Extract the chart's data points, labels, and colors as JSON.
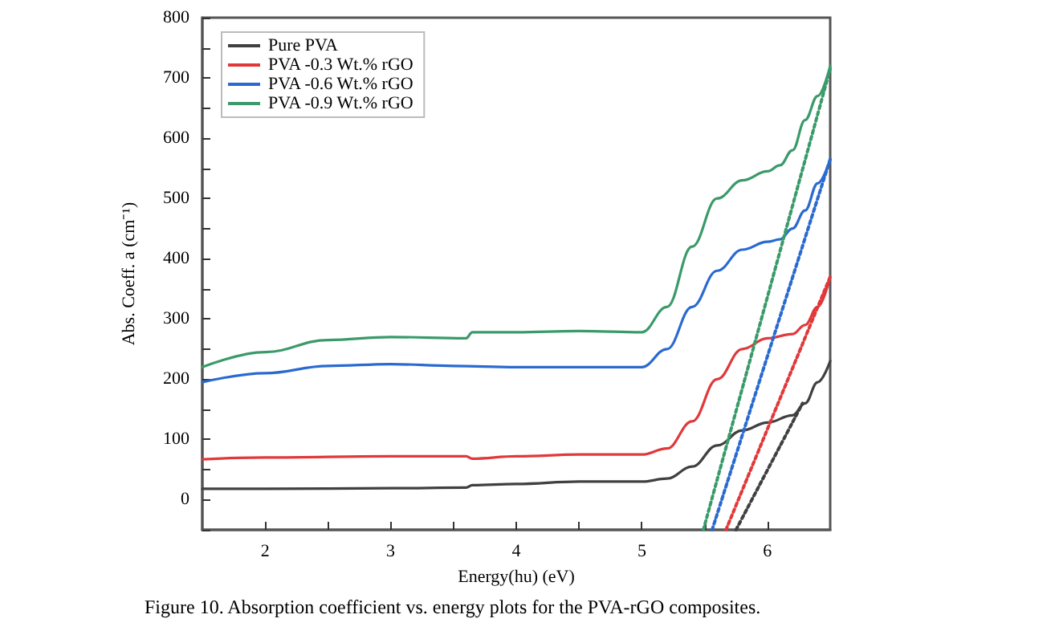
{
  "chart_data": {
    "type": "line",
    "xlabel": "Energy(hu) (eV)",
    "ylabel": "Abs. Coeff. a (cm⁻¹)",
    "annotations": [
      "Figure 10. Absorption coefficient vs. energy plots for the PVA-rGO composites."
    ],
    "xlim": [
      1.5,
      6.5
    ],
    "xticks": [
      2,
      {
        "value": 2.5,
        "label": null
      },
      3,
      {
        "value": 3.5,
        "label": null
      },
      4,
      {
        "value": 4.5,
        "label": null
      },
      5,
      {
        "value": 5.5,
        "label": null
      },
      6
    ],
    "ylim": [
      -50,
      800
    ],
    "yticks": [
      {
        "value": -50,
        "label": null
      },
      0,
      {
        "value": 50,
        "label": null
      },
      100,
      {
        "value": 150,
        "label": null
      },
      200,
      {
        "value": 250,
        "label": null
      },
      300,
      {
        "value": 350,
        "label": null
      },
      400,
      {
        "value": 450,
        "label": null
      },
      500,
      {
        "value": 550,
        "label": null
      },
      600,
      {
        "value": 650,
        "label": null
      },
      700,
      {
        "value": 750,
        "label": null
      },
      800
    ],
    "grid": false,
    "legend": "top left",
    "marker": "none",
    "series": [
      {
        "name": "Pure PVA",
        "color": "#404040",
        "line_style": "solid",
        "x": [
          1.5,
          2,
          3,
          3.6,
          3.65,
          4,
          4.5,
          5,
          5.2,
          5.4,
          5.6,
          5.8,
          6.0,
          6.2,
          6.3,
          6.4,
          6.5
        ],
        "values": [
          18,
          18,
          19,
          20,
          24,
          26,
          30,
          30,
          35,
          55,
          90,
          115,
          128,
          140,
          160,
          195,
          230
        ]
      },
      {
        "name": "PVA -0.3 Wt.% rGO",
        "color": "#e0393b",
        "line_style": "solid",
        "x": [
          1.5,
          2,
          3,
          3.6,
          3.65,
          4,
          4.5,
          5,
          5.2,
          5.4,
          5.6,
          5.8,
          6.0,
          6.2,
          6.3,
          6.4,
          6.5
        ],
        "values": [
          67,
          70,
          72,
          72,
          68,
          72,
          75,
          75,
          85,
          130,
          200,
          250,
          268,
          275,
          290,
          320,
          370
        ]
      },
      {
        "name": "PVA -0.6 Wt.% rGO",
        "color": "#2a6ad0",
        "line_style": "solid",
        "x": [
          1.5,
          2,
          2.5,
          3,
          3.5,
          4,
          4.5,
          5,
          5.2,
          5.4,
          5.6,
          5.8,
          6.0,
          6.1,
          6.2,
          6.3,
          6.4,
          6.5
        ],
        "values": [
          195,
          210,
          222,
          225,
          222,
          220,
          220,
          220,
          250,
          320,
          380,
          415,
          428,
          432,
          450,
          480,
          525,
          565
        ]
      },
      {
        "name": "PVA -0.9 Wt.% rGO",
        "color": "#3a9a6a",
        "line_style": "solid",
        "x": [
          1.5,
          2,
          2.5,
          3,
          3.6,
          3.65,
          4,
          4.5,
          5,
          5.2,
          5.4,
          5.6,
          5.8,
          6.0,
          6.1,
          6.2,
          6.3,
          6.4,
          6.5
        ],
        "values": [
          220,
          245,
          265,
          270,
          268,
          278,
          278,
          280,
          278,
          320,
          420,
          500,
          530,
          545,
          555,
          580,
          630,
          670,
          720
        ]
      },
      {
        "color": "#404040",
        "line_style": "dotted",
        "x": [
          5.75,
          6.28
        ],
        "values": [
          -50,
          160
        ]
      },
      {
        "color": "#e0393b",
        "line_style": "dotted",
        "x": [
          5.67,
          6.5
        ],
        "values": [
          -50,
          370
        ]
      },
      {
        "color": "#2a6ad0",
        "line_style": "dotted",
        "x": [
          5.56,
          6.5
        ],
        "values": [
          -50,
          565
        ]
      },
      {
        "color": "#3a9a6a",
        "line_style": "dotted",
        "x": [
          5.49,
          6.5
        ],
        "values": [
          -50,
          715
        ]
      }
    ]
  }
}
